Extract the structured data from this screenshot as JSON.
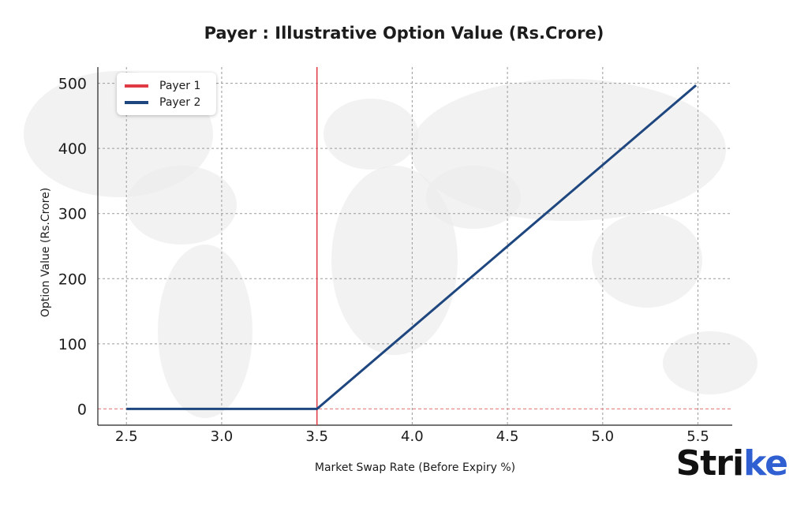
{
  "chart_data": {
    "type": "line",
    "title": "Payer : Illustrative Option Value (Rs.Crore)",
    "xlabel": "Market Swap Rate (Before Expiry %)",
    "ylabel": "Option Value (Rs.Crore)",
    "xlim": [
      2.35,
      5.68
    ],
    "ylim": [
      -25,
      525
    ],
    "x_ticks": [
      "2.5",
      "3.0",
      "3.5",
      "4.0",
      "4.5",
      "5.0",
      "5.5"
    ],
    "x_tick_values": [
      2.5,
      3.0,
      3.5,
      4.0,
      4.5,
      5.0,
      5.5
    ],
    "y_ticks": [
      "0",
      "100",
      "200",
      "300",
      "400",
      "500"
    ],
    "y_tick_values": [
      0,
      100,
      200,
      300,
      400,
      500
    ],
    "grid": true,
    "legend": "top-left",
    "series": [
      {
        "name": "Payer 1",
        "color": "#e03a45",
        "style": "vertical-line",
        "x": [
          3.5,
          3.5
        ],
        "y": [
          -25,
          525
        ]
      },
      {
        "name": "Payer 2",
        "color": "#1f477f",
        "style": "line",
        "x": [
          2.5,
          3.5,
          5.49
        ],
        "y": [
          0,
          0,
          497
        ]
      }
    ],
    "reference_line": {
      "y": 0,
      "color": "#e88a8a",
      "style": "dashed"
    }
  },
  "watermark": {
    "description": "world-map"
  },
  "logo": {
    "text_main": "Stri",
    "text_accent": "ke"
  }
}
